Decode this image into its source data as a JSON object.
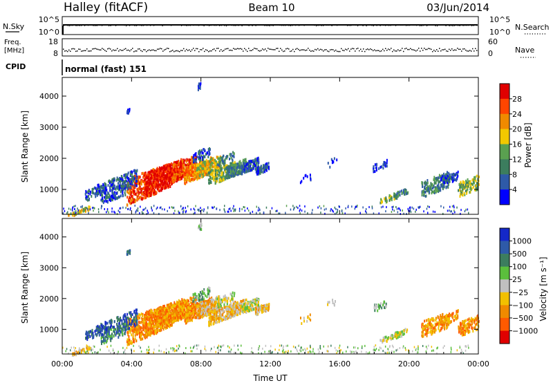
{
  "header": {
    "station": "Halley (fitACF)",
    "beam": "Beam 10",
    "date": "03/Jun/2014"
  },
  "nsky_panel": {
    "left_label": "N.Sky",
    "right_label": "N.Search",
    "left_ticks": [
      "10^5",
      "10^0"
    ],
    "right_ticks": [
      "10^5",
      "10^0"
    ]
  },
  "freq_panel": {
    "left_label_line1": "Freq.",
    "left_label_line2": "[MHz]",
    "right_label": "Nave",
    "left_ticks": [
      "18",
      "8"
    ],
    "right_ticks": [
      "60",
      "0"
    ]
  },
  "cpid_panel": {
    "left_label": "CPID",
    "mode_text": "normal (fast) 151"
  },
  "colors": {
    "power_scale": [
      "#0000ff",
      "#2e5aa8",
      "#3c7d5e",
      "#5aa050",
      "#f2c800",
      "#f08a00",
      "#ff4500",
      "#e00000"
    ],
    "velocity_scale": [
      "#e00000",
      "#ff5a00",
      "#f08a00",
      "#f2c000",
      "#c0c0c0",
      "#5bbf3c",
      "#3c7d5e",
      "#2e5aa8",
      "#1428c8"
    ]
  },
  "chart_data": [
    {
      "type": "heatmap",
      "name": "power",
      "ylabel": "Slant Range [km]",
      "yticks": [
        "1000",
        "2000",
        "3000",
        "4000"
      ],
      "ylim": [
        200,
        4600
      ],
      "xlim_hours": [
        0,
        24
      ],
      "colorbar_label": "Power [dB]",
      "colorbar_ticks": [
        "4",
        "8",
        "12",
        "16",
        "20",
        "24",
        "28"
      ],
      "colorbar_range": [
        0,
        30
      ],
      "grid": false
    },
    {
      "type": "heatmap",
      "name": "velocity",
      "ylabel": "Slant Range [km]",
      "yticks": [
        "1000",
        "2000",
        "3000",
        "4000"
      ],
      "ylim": [
        200,
        4600
      ],
      "xlim_hours": [
        0,
        24
      ],
      "xlabel": "Time UT",
      "xticks": [
        "00:00",
        "04:00",
        "08:00",
        "12:00",
        "16:00",
        "20:00",
        "00:00"
      ],
      "colorbar_label": "Velocity [m s⁻¹]",
      "colorbar_ticks": [
        "1000",
        "500",
        "100",
        "25",
        "−25",
        "−100",
        "−500",
        "−1000"
      ],
      "grid": false
    }
  ]
}
